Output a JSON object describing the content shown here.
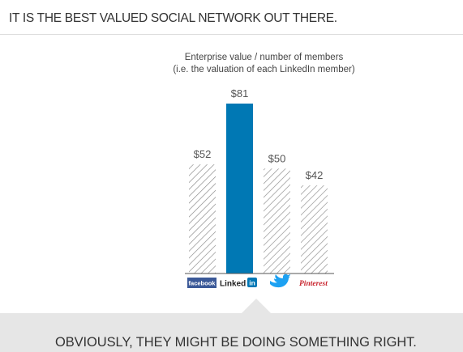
{
  "header": {
    "title": "IT IS THE BEST VALUED SOCIAL NETWORK OUT THERE."
  },
  "footer": {
    "text": "OBVIOUSLY, THEY MIGHT BE DOING SOMETHING RIGHT."
  },
  "colors": {
    "highlight_bar": "#0078b4",
    "hatch_stroke": "#888888",
    "footer_band": "#e6e6e6",
    "facebook": "#3b5998",
    "linkedin": "#0077b5",
    "twitter": "#1da1f2",
    "pinterest": "#c8232c"
  },
  "chart_data": {
    "type": "bar",
    "title": "Enterprise value / number of members",
    "subtitle": "(i.e. the valuation of each LinkedIn member)",
    "categories": [
      "facebook",
      "LinkedIn",
      "twitter",
      "Pinterest"
    ],
    "category_logos": [
      {
        "text": "facebook",
        "icon": "facebook-logo"
      },
      {
        "text": "Linked",
        "badge": "in",
        "icon": "linkedin-logo"
      },
      {
        "text": "",
        "icon": "twitter-bird-logo"
      },
      {
        "text": "Pinterest",
        "icon": "pinterest-logo"
      }
    ],
    "values": [
      52,
      81,
      50,
      42
    ],
    "value_labels": [
      "$52",
      "$81",
      "$50",
      "$42"
    ],
    "highlight_index": 1,
    "ylim": [
      0,
      81
    ],
    "grid": false,
    "legend": "none"
  }
}
